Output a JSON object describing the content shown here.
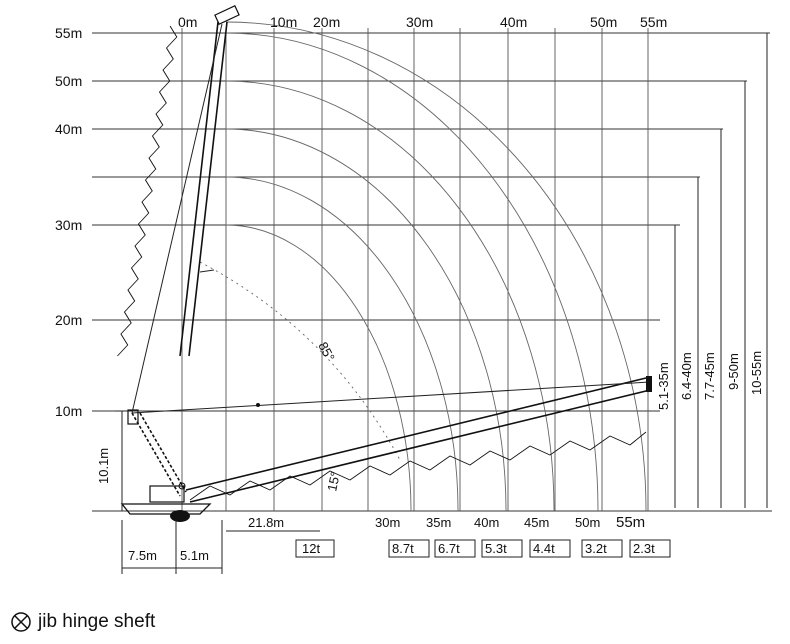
{
  "top_axis_labels": [
    "0m",
    "10m",
    "20m",
    "30m",
    "40m",
    "50m",
    "55m"
  ],
  "left_axis_labels": [
    "55m",
    "50m",
    "40m",
    "30m",
    "20m",
    "10m"
  ],
  "angles": [
    "85°",
    "15°"
  ],
  "dimensions": {
    "pivot_height": "10.1m",
    "rear_offset": "7.5m",
    "front_offset": "5.1m",
    "min_radius": "21.8m"
  },
  "min_radius_load": "12t",
  "radii": [
    "30m",
    "35m",
    "40m",
    "45m",
    "50m",
    "55m"
  ],
  "loads": [
    "8.7t",
    "6.7t",
    "5.3t",
    "4.4t",
    "3.2t",
    "2.3t"
  ],
  "jib_ranges": [
    "5.1-35m",
    "6.4-40m",
    "7.7-45m",
    "9-50m",
    "10-55m"
  ],
  "legend": {
    "icon": "jib-hinge-icon",
    "label": "jib hinge sheft"
  }
}
